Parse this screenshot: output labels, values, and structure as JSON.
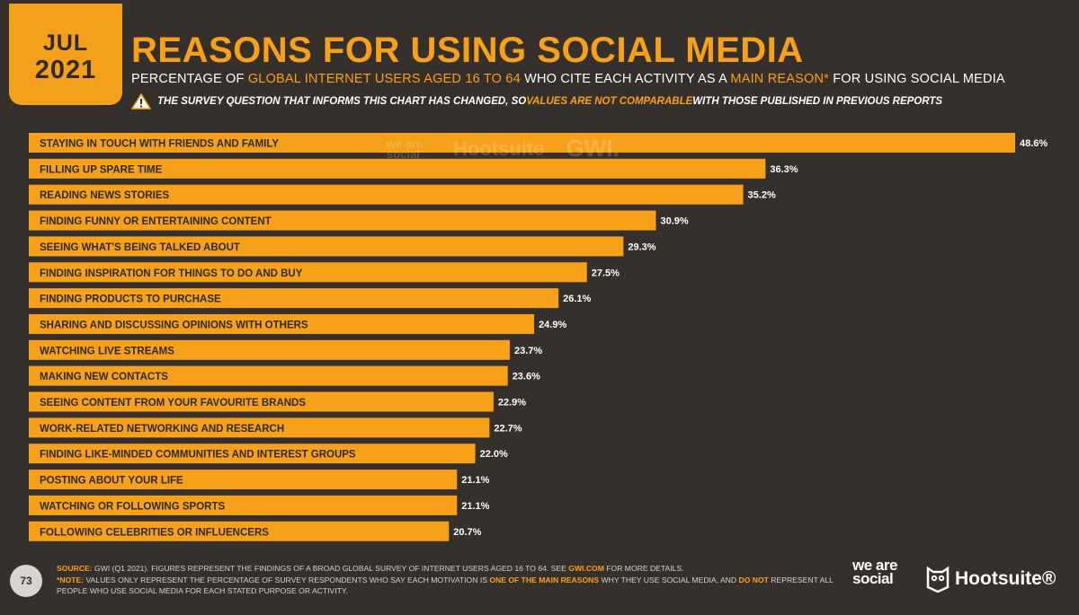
{
  "header": {
    "month": "JUL",
    "year": "2021",
    "title": "REASONS FOR USING SOCIAL MEDIA",
    "subtitle_parts": [
      "PERCENTAGE OF ",
      "GLOBAL INTERNET USERS AGED 16 TO 64",
      " WHO CITE EACH ACTIVITY AS A ",
      "MAIN REASON*",
      " FOR USING SOCIAL MEDIA"
    ],
    "warning_parts": [
      "THE SURVEY QUESTION THAT INFORMS THIS CHART HAS CHANGED, SO ",
      "VALUES ARE NOT COMPARABLE",
      " WITH THOSE PUBLISHED IN PREVIOUS REPORTS"
    ]
  },
  "watermark": {
    "was": "we are social",
    "hootsuite": "Hootsuite",
    "gwi": "GWI."
  },
  "colors": {
    "bar": "#f7a11a",
    "accent": "#f7a11a",
    "background": "#36302c",
    "text": "#ffffff"
  },
  "chart_data": {
    "type": "bar",
    "orientation": "horizontal",
    "categories": [
      "STAYING IN TOUCH WITH FRIENDS AND FAMILY",
      "FILLING UP SPARE TIME",
      "READING NEWS STORIES",
      "FINDING FUNNY OR ENTERTAINING CONTENT",
      "SEEING WHAT'S BEING TALKED ABOUT",
      "FINDING INSPIRATION FOR THINGS TO DO AND BUY",
      "FINDING PRODUCTS TO PURCHASE",
      "SHARING AND DISCUSSING OPINIONS WITH OTHERS",
      "WATCHING LIVE STREAMS",
      "MAKING NEW CONTACTS",
      "SEEING CONTENT FROM YOUR FAVOURITE BRANDS",
      "WORK-RELATED NETWORKING AND RESEARCH",
      "FINDING LIKE-MINDED COMMUNITIES AND INTEREST GROUPS",
      "POSTING ABOUT YOUR LIFE",
      "WATCHING OR FOLLOWING SPORTS",
      "FOLLOWING CELEBRITIES OR INFLUENCERS"
    ],
    "values": [
      48.6,
      36.3,
      35.2,
      30.9,
      29.3,
      27.5,
      26.1,
      24.9,
      23.7,
      23.6,
      22.9,
      22.7,
      22.0,
      21.1,
      21.1,
      20.7
    ],
    "value_labels": [
      "48.6%",
      "36.3%",
      "35.2%",
      "30.9%",
      "29.3%",
      "27.5%",
      "26.1%",
      "24.9%",
      "23.7%",
      "23.6%",
      "22.9%",
      "22.7%",
      "22.0%",
      "21.1%",
      "21.1%",
      "20.7%"
    ],
    "unit": "%",
    "xlim": [
      0,
      48.6
    ],
    "grid": false,
    "legend": "none"
  },
  "footer": {
    "page_number": "73",
    "source_label": "SOURCE:",
    "source_text": " GWI (Q1 2021). FIGURES REPRESENT THE FINDINGS OF A BROAD GLOBAL SURVEY OF INTERNET USERS AGED 16 TO 64. SEE ",
    "source_link": "GWI.COM",
    "source_end": " FOR MORE DETAILS.",
    "note_label": "*NOTE:",
    "note_text_1": " VALUES ONLY REPRESENT THE PERCENTAGE OF SURVEY RESPONDENTS WHO SAY EACH MOTIVATION IS ",
    "note_hl_1": "ONE OF THE MAIN REASONS",
    "note_text_2": " WHY THEY USE SOCIAL MEDIA, AND ",
    "note_hl_2": "DO NOT",
    "note_text_3": " REPRESENT ALL PEOPLE WHO USE SOCIAL MEDIA FOR EACH STATED PURPOSE OR ACTIVITY.",
    "logo_was": "we are social",
    "logo_hootsuite": "Hootsuite®"
  }
}
